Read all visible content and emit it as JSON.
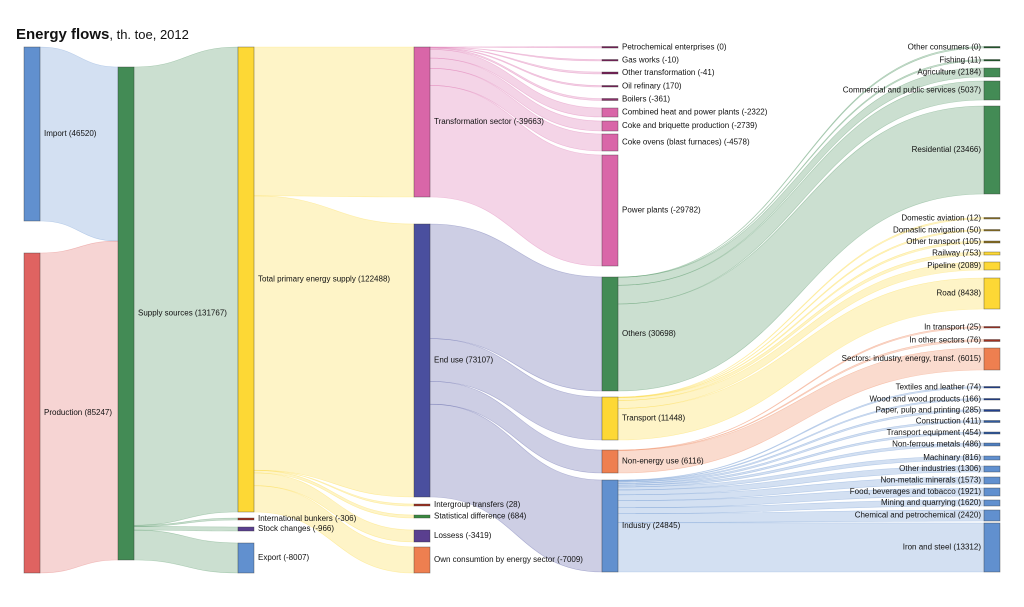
{
  "title": {
    "main": "Energy flows",
    "sub": ", th. toe, 2012"
  },
  "nodes": [
    {
      "label": "Import (46520)",
      "color": "#6190cf"
    },
    {
      "label": "Production (85247)",
      "color": "#df6361"
    },
    {
      "label": "Supply sources (131767)",
      "color": "#438b55"
    },
    {
      "label": "Total primary energy supply (122488)",
      "color": "#fdd835"
    },
    {
      "label": "International bunkers (-306)",
      "color": "#a03020"
    },
    {
      "label": "Stock changes (-966)",
      "color": "#5a3f8f"
    },
    {
      "label": "Export (-8007)",
      "color": "#6190cf"
    },
    {
      "label": "Transformation sector (-39663)",
      "color": "#d966a8"
    },
    {
      "label": "End use (73107)",
      "color": "#4a4f9e"
    },
    {
      "label": "Intergroup transfers (28)",
      "color": "#a03020"
    },
    {
      "label": "Statistical difference (684)",
      "color": "#3a8a40"
    },
    {
      "label": "Lossess (-3419)",
      "color": "#5a3f8f"
    },
    {
      "label": "Own consumtion by energy sector (-7009)",
      "color": "#ee7f50"
    },
    {
      "label": "Petrochemical enterprises (0)",
      "color": "#7a1f5a"
    },
    {
      "label": "Gas works (-10)",
      "color": "#7a1f5a"
    },
    {
      "label": "Other transformation (-41)",
      "color": "#7a1f5a"
    },
    {
      "label": "Oil refinary (170)",
      "color": "#7a1f5a"
    },
    {
      "label": "Boilers (-361)",
      "color": "#8a2f6a"
    },
    {
      "label": "Combined heat and power plants (-2322)",
      "color": "#d966a8"
    },
    {
      "label": "Coke and briquette production (-2739)",
      "color": "#d966a8"
    },
    {
      "label": "Coke ovens (blast furnaces) (-4578)",
      "color": "#d966a8"
    },
    {
      "label": "Power plants (-29782)",
      "color": "#d966a8"
    },
    {
      "label": "Others (30698)",
      "color": "#438b55"
    },
    {
      "label": "Transport (11448)",
      "color": "#fdd835"
    },
    {
      "label": "Non-energy use (6116)",
      "color": "#ee7f50"
    },
    {
      "label": "Industry (24845)",
      "color": "#6190cf"
    },
    {
      "label": "Other consumers (0)",
      "color": "#1f5a2a"
    },
    {
      "label": "Fishing (11)",
      "color": "#1f5a2a"
    },
    {
      "label": "Agriculture (2184)",
      "color": "#438b55"
    },
    {
      "label": "Commercial and public services (5037)",
      "color": "#438b55"
    },
    {
      "label": "Residential (23466)",
      "color": "#438b55"
    },
    {
      "label": "Domestic aviation (12)",
      "color": "#8a7020"
    },
    {
      "label": "Domaslic navigation (50)",
      "color": "#8a7020"
    },
    {
      "label": "Other transport (105)",
      "color": "#8a7020"
    },
    {
      "label": "Railway (753)",
      "color": "#fdd835"
    },
    {
      "label": "Pipeline (2089)",
      "color": "#fdd835"
    },
    {
      "label": "Road (8438)",
      "color": "#fdd835"
    },
    {
      "label": "In transport (25)",
      "color": "#a03020"
    },
    {
      "label": "In other sectors (76)",
      "color": "#a03020"
    },
    {
      "label": "Sectors: industry, energy, transf. (6015)",
      "color": "#ee7f50"
    },
    {
      "label": "Textiles and leather (74)",
      "color": "#1f3f8f"
    },
    {
      "label": "Wood and wood products (166)",
      "color": "#1f3f8f"
    },
    {
      "label": "Paper, pulp and printing (285)",
      "color": "#1f3f8f"
    },
    {
      "label": "Construction (411)",
      "color": "#2f5a9f"
    },
    {
      "label": "Transport equipment (454)",
      "color": "#2f5a9f"
    },
    {
      "label": "Non-ferrous metals (486)",
      "color": "#4f7fbf"
    },
    {
      "label": "Machinary (816)",
      "color": "#6190cf"
    },
    {
      "label": "Other industries (1306)",
      "color": "#6190cf"
    },
    {
      "label": "Non-metalic minerals (1573)",
      "color": "#6190cf"
    },
    {
      "label": "Food, beverages and tobacco (1921)",
      "color": "#6190cf"
    },
    {
      "label": "Mining and quarrying (1620)",
      "color": "#6190cf"
    },
    {
      "label": "Chemical and petrochemical (2420)",
      "color": "#6190cf"
    },
    {
      "label": "Iron and steel (13312)",
      "color": "#6190cf"
    }
  ],
  "links": [
    [
      0,
      2,
      46520
    ],
    [
      1,
      2,
      85247
    ],
    [
      2,
      3,
      122488
    ],
    [
      2,
      4,
      306
    ],
    [
      2,
      5,
      966
    ],
    [
      2,
      6,
      8007
    ],
    [
      3,
      7,
      39663
    ],
    [
      3,
      8,
      73107
    ],
    [
      3,
      9,
      28
    ],
    [
      3,
      10,
      684
    ],
    [
      3,
      11,
      3419
    ],
    [
      3,
      12,
      7009
    ],
    [
      7,
      13,
      0
    ],
    [
      7,
      14,
      10
    ],
    [
      7,
      15,
      41
    ],
    [
      7,
      16,
      170
    ],
    [
      7,
      17,
      361
    ],
    [
      7,
      18,
      2322
    ],
    [
      7,
      19,
      2739
    ],
    [
      7,
      20,
      4578
    ],
    [
      7,
      21,
      29782
    ],
    [
      8,
      22,
      30698
    ],
    [
      8,
      23,
      11448
    ],
    [
      8,
      24,
      6116
    ],
    [
      8,
      25,
      24845
    ],
    [
      22,
      26,
      0
    ],
    [
      22,
      27,
      11
    ],
    [
      22,
      28,
      2184
    ],
    [
      22,
      29,
      5037
    ],
    [
      22,
      30,
      23466
    ],
    [
      23,
      31,
      12
    ],
    [
      23,
      32,
      50
    ],
    [
      23,
      33,
      105
    ],
    [
      23,
      34,
      753
    ],
    [
      23,
      35,
      2089
    ],
    [
      23,
      36,
      8438
    ],
    [
      24,
      37,
      25
    ],
    [
      24,
      38,
      76
    ],
    [
      24,
      39,
      6015
    ],
    [
      25,
      40,
      74
    ],
    [
      25,
      41,
      166
    ],
    [
      25,
      42,
      285
    ],
    [
      25,
      43,
      411
    ],
    [
      25,
      44,
      454
    ],
    [
      25,
      45,
      486
    ],
    [
      25,
      46,
      816
    ],
    [
      25,
      47,
      1306
    ],
    [
      25,
      48,
      1573
    ],
    [
      25,
      49,
      1921
    ],
    [
      25,
      50,
      1620
    ],
    [
      25,
      51,
      2420
    ],
    [
      25,
      52,
      13312
    ]
  ]
}
